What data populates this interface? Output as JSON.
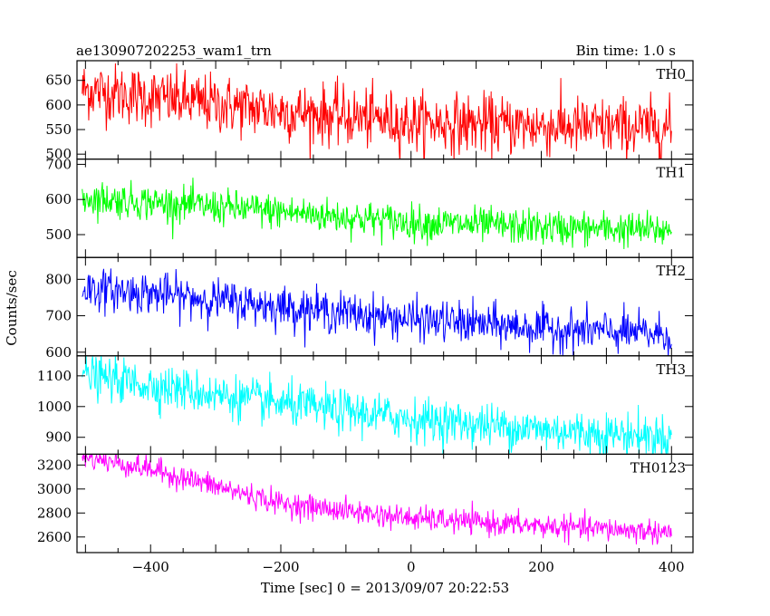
{
  "chart_data": {
    "type": "line",
    "title_left": "ae130907202253_wam1_trn",
    "title_right": "Bin time: 1.0 s",
    "xlabel": "Time [sec] 0 = 2013/09/07 20:22:53",
    "ylabel": "Counts/sec",
    "xlim": [
      -513,
      433
    ],
    "xticks": [
      -400,
      -200,
      0,
      200,
      400
    ],
    "x_start": -505,
    "x_end": 400,
    "x_step": 1.0,
    "panels": [
      {
        "name": "TH0",
        "color": "#ff0000",
        "ylim": [
          490,
          690
        ],
        "yticks": [
          500,
          550,
          600,
          650
        ],
        "trend": [
          [
            -505,
            632
          ],
          [
            -400,
            615
          ],
          [
            -200,
            588
          ],
          [
            0,
            565
          ],
          [
            200,
            557
          ],
          [
            400,
            553
          ]
        ],
        "noise": 30
      },
      {
        "name": "TH1",
        "color": "#00ff00",
        "ylim": [
          435,
          715
        ],
        "yticks": [
          500,
          600,
          700
        ],
        "trend": [
          [
            -505,
            605
          ],
          [
            -400,
            592
          ],
          [
            -200,
            565
          ],
          [
            0,
            535
          ],
          [
            200,
            520
          ],
          [
            400,
            512
          ]
        ],
        "noise": 25
      },
      {
        "name": "TH2",
        "color": "#0000ff",
        "ylim": [
          590,
          860
        ],
        "yticks": [
          600,
          700,
          800
        ],
        "trend": [
          [
            -505,
            775
          ],
          [
            -400,
            762
          ],
          [
            -200,
            725
          ],
          [
            0,
            690
          ],
          [
            200,
            665
          ],
          [
            400,
            648
          ]
        ],
        "noise": 28
      },
      {
        "name": "TH3",
        "color": "#00ffff",
        "ylim": [
          845,
          1165
        ],
        "yticks": [
          900,
          1000,
          1100
        ],
        "trend": [
          [
            -505,
            1102
          ],
          [
            -400,
            1070
          ],
          [
            -200,
            1008
          ],
          [
            0,
            960
          ],
          [
            200,
            925
          ],
          [
            400,
            900
          ]
        ],
        "noise": 35
      },
      {
        "name": "TH0123",
        "color": "#ff00ff",
        "ylim": [
          2470,
          3290
        ],
        "yticks": [
          2600,
          2800,
          3000,
          3200
        ],
        "trend": [
          [
            -505,
            3270
          ],
          [
            -400,
            3165
          ],
          [
            -200,
            2880
          ],
          [
            0,
            2755
          ],
          [
            200,
            2690
          ],
          [
            400,
            2640
          ]
        ],
        "noise": 50
      }
    ]
  }
}
